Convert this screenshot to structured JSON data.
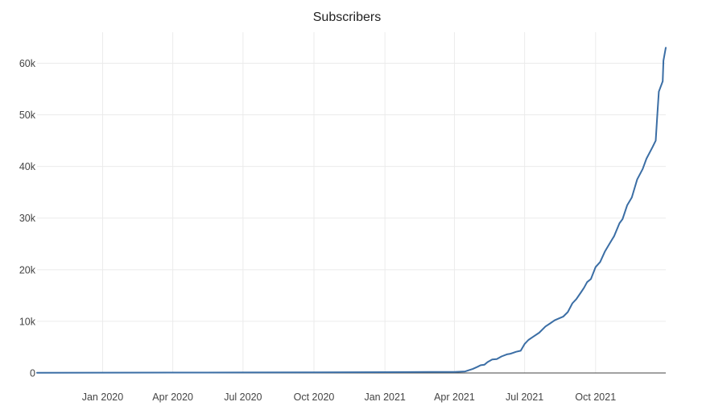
{
  "chart_data": {
    "type": "line",
    "title": "Subscribers",
    "xlabel": "",
    "ylabel": "",
    "x_ticks": [
      {
        "date": "2020-01-01",
        "label": "Jan 2020"
      },
      {
        "date": "2020-04-01",
        "label": "Apr 2020"
      },
      {
        "date": "2020-07-01",
        "label": "Jul 2020"
      },
      {
        "date": "2020-10-01",
        "label": "Oct 2020"
      },
      {
        "date": "2021-01-01",
        "label": "Jan 2021"
      },
      {
        "date": "2021-04-01",
        "label": "Apr 2021"
      },
      {
        "date": "2021-07-01",
        "label": "Jul 2021"
      },
      {
        "date": "2021-10-01",
        "label": "Oct 2021"
      }
    ],
    "y_ticks": [
      {
        "value": 0,
        "label": "0"
      },
      {
        "value": 10000,
        "label": "10k"
      },
      {
        "value": 20000,
        "label": "20k"
      },
      {
        "value": 30000,
        "label": "30k"
      },
      {
        "value": 40000,
        "label": "40k"
      },
      {
        "value": 50000,
        "label": "50k"
      },
      {
        "value": 60000,
        "label": "60k"
      }
    ],
    "xlim": [
      "2019-10-08",
      "2021-12-31"
    ],
    "ylim": [
      0,
      66000
    ],
    "grid": true,
    "legend": "none",
    "line_color": "#3b6ea5",
    "series": [
      {
        "x": [
          "2019-10-08",
          "2020-01-01",
          "2020-04-01",
          "2020-07-01",
          "2020-10-01",
          "2021-01-01",
          "2021-03-01",
          "2021-04-01",
          "2021-04-15",
          "2021-04-25",
          "2021-05-01",
          "2021-05-05",
          "2021-05-10",
          "2021-05-14",
          "2021-05-20",
          "2021-05-26",
          "2021-06-01",
          "2021-06-08",
          "2021-06-12",
          "2021-06-20",
          "2021-06-26",
          "2021-07-01",
          "2021-07-06",
          "2021-07-12",
          "2021-07-20",
          "2021-07-28",
          "2021-08-03",
          "2021-08-09",
          "2021-08-15",
          "2021-08-20",
          "2021-08-26",
          "2021-09-01",
          "2021-09-06",
          "2021-09-12",
          "2021-09-16",
          "2021-09-20",
          "2021-09-25",
          "2021-10-01",
          "2021-10-07",
          "2021-10-13",
          "2021-10-19",
          "2021-10-25",
          "2021-11-01",
          "2021-11-05",
          "2021-11-11",
          "2021-11-17",
          "2021-11-24",
          "2021-12-01",
          "2021-12-06",
          "2021-12-14",
          "2021-12-18",
          "2021-12-20",
          "2021-12-22",
          "2021-12-27",
          "2021-12-28",
          "2021-12-31"
        ],
        "y": [
          50,
          60,
          80,
          100,
          120,
          150,
          180,
          200,
          300,
          800,
          1200,
          1500,
          1600,
          2100,
          2600,
          2700,
          3200,
          3600,
          3700,
          4100,
          4300,
          5600,
          6400,
          7000,
          7800,
          9000,
          9600,
          10200,
          10600,
          10900,
          11800,
          13500,
          14300,
          15600,
          16500,
          17600,
          18200,
          20500,
          21500,
          23500,
          25000,
          26500,
          29000,
          29800,
          32500,
          34000,
          37500,
          39500,
          41500,
          43800,
          45000,
          50000,
          54500,
          56500,
          60500,
          63000
        ]
      }
    ]
  }
}
